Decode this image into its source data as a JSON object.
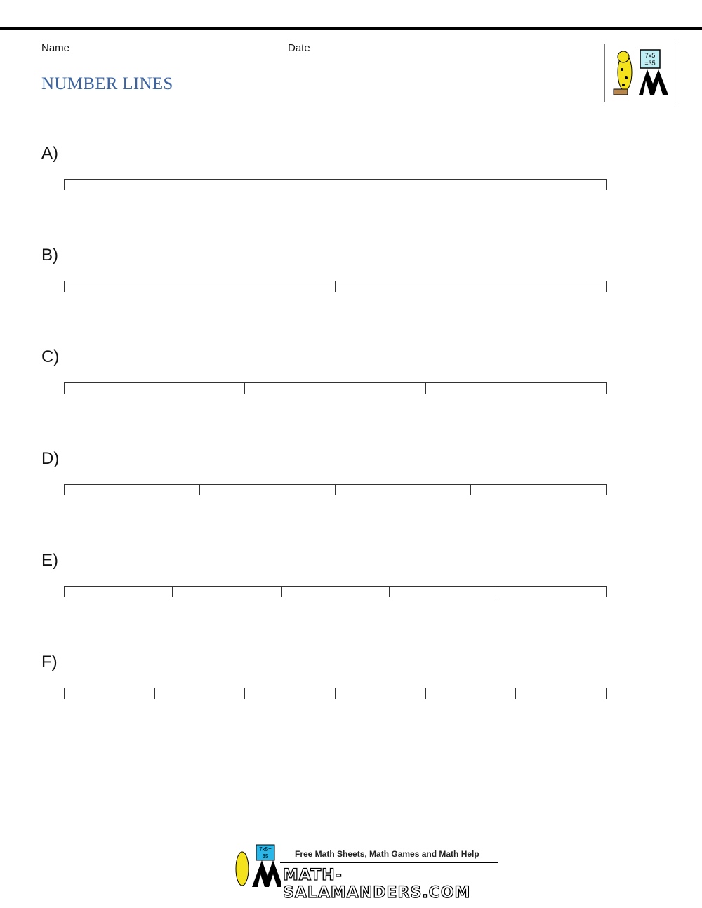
{
  "header": {
    "name_label": "Name",
    "date_label": "Date",
    "title": "NUMBER LINES"
  },
  "logo": {
    "board_text": "7x5 =35",
    "title_color": "#3b64a0"
  },
  "problems": [
    {
      "label": "A)",
      "divisions": 1
    },
    {
      "label": "B)",
      "divisions": 2
    },
    {
      "label": "C)",
      "divisions": 3
    },
    {
      "label": "D)",
      "divisions": 4
    },
    {
      "label": "E)",
      "divisions": 5
    },
    {
      "label": "F)",
      "divisions": 6
    }
  ],
  "footer": {
    "tagline": "Free Math Sheets, Math Games and Math Help",
    "site": "MATH-SALAMANDERS.COM"
  }
}
